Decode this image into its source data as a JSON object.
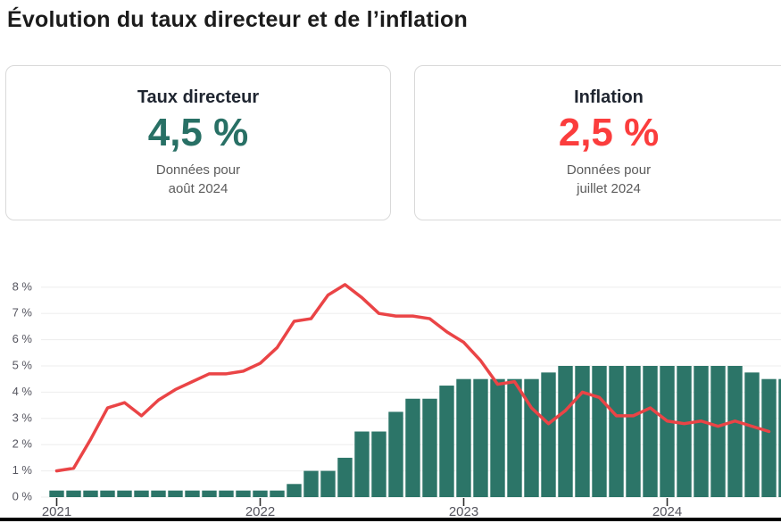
{
  "page": {
    "title": "Évolution du taux directeur et de l’inflation"
  },
  "cards": [
    {
      "label": "Taux directeur",
      "value": "4,5 %",
      "note_line1": "Données pour",
      "note_line2": "août 2024",
      "value_color": "#287065"
    },
    {
      "label": "Inflation",
      "value": "2,5 %",
      "note_line1": "Données pour",
      "note_line2": "juillet 2024",
      "value_color": "#fb3d3d"
    }
  ],
  "chart_data": {
    "type": "bar+line",
    "title": "",
    "xlabel": "",
    "ylabel": "",
    "x_start": "2021-01",
    "x_tick_labels": [
      "2021",
      "2022",
      "2023",
      "2024"
    ],
    "y_tick_labels": [
      "0 %",
      "1 %",
      "2 %",
      "3 %",
      "4 %",
      "5 %",
      "6 %",
      "7 %",
      "8 %"
    ],
    "ylim": [
      0,
      8
    ],
    "grid": true,
    "legend": "none",
    "series": [
      {
        "name": "Taux directeur",
        "type": "bar",
        "color": "#2c7568",
        "unit": "%",
        "values": [
          0.25,
          0.25,
          0.25,
          0.25,
          0.25,
          0.25,
          0.25,
          0.25,
          0.25,
          0.25,
          0.25,
          0.25,
          0.25,
          0.25,
          0.5,
          1.0,
          1.0,
          1.5,
          2.5,
          2.5,
          3.25,
          3.75,
          3.75,
          4.25,
          4.5,
          4.5,
          4.5,
          4.5,
          4.5,
          4.75,
          5.0,
          5.0,
          5.0,
          5.0,
          5.0,
          5.0,
          5.0,
          5.0,
          5.0,
          5.0,
          5.0,
          4.75,
          4.5,
          4.5
        ]
      },
      {
        "name": "Inflation",
        "type": "line",
        "color": "#ea4446",
        "unit": "%",
        "values": [
          1.0,
          1.1,
          2.2,
          3.4,
          3.6,
          3.1,
          3.7,
          4.1,
          4.4,
          4.7,
          4.7,
          4.8,
          5.1,
          5.7,
          6.7,
          6.8,
          7.7,
          8.1,
          7.6,
          7.0,
          6.9,
          6.9,
          6.8,
          6.3,
          5.9,
          5.2,
          4.3,
          4.4,
          3.4,
          2.8,
          3.3,
          4.0,
          3.8,
          3.1,
          3.1,
          3.4,
          2.9,
          2.8,
          2.9,
          2.7,
          2.9,
          2.7,
          2.5
        ]
      }
    ]
  }
}
